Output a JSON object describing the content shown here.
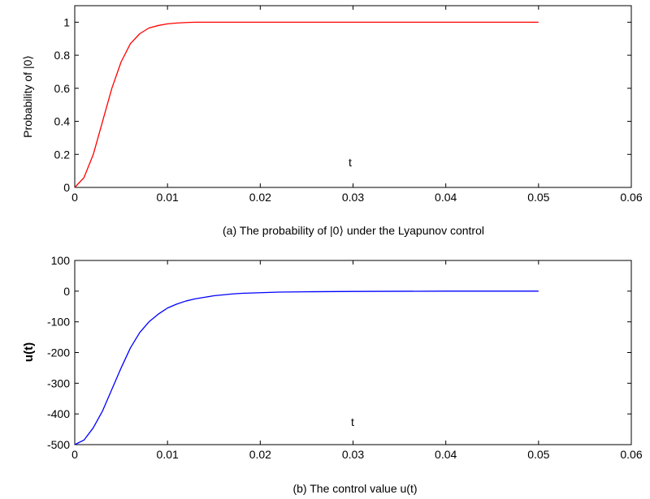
{
  "chart_data": [
    {
      "type": "line",
      "caption": "(a) The probability of |0⟩ under the Lyapunov control",
      "xlabel": "t",
      "ylabel": "Probability of |0⟩",
      "xlim": [
        0,
        0.06
      ],
      "ylim": [
        0,
        1.1
      ],
      "xticks": [
        "0",
        "0.01",
        "0.02",
        "0.03",
        "0.04",
        "0.05",
        "0.06"
      ],
      "yticks": [
        "0",
        "0.2",
        "0.4",
        "0.6",
        "0.8",
        "1"
      ],
      "grid": false,
      "series": [
        {
          "color": "#ff0000",
          "x": [
            0,
            0.001,
            0.002,
            0.003,
            0.004,
            0.005,
            0.006,
            0.007,
            0.008,
            0.009,
            0.01,
            0.011,
            0.012,
            0.013,
            0.015,
            0.02,
            0.03,
            0.04,
            0.05
          ],
          "y": [
            0,
            0.06,
            0.2,
            0.4,
            0.6,
            0.76,
            0.87,
            0.93,
            0.965,
            0.98,
            0.99,
            0.995,
            0.998,
            1.0,
            1.0,
            1.0,
            1.0,
            1.0,
            1.0
          ]
        }
      ]
    },
    {
      "type": "line",
      "caption": "(b) The control value u(t)",
      "xlabel": "t",
      "ylabel": "u(t)",
      "xlim": [
        0,
        0.06
      ],
      "ylim": [
        -500,
        100
      ],
      "xticks": [
        "0",
        "0.01",
        "0.02",
        "0.03",
        "0.04",
        "0.05",
        "0.06"
      ],
      "yticks": [
        "-500",
        "-400",
        "-300",
        "-200",
        "-100",
        "0",
        "100"
      ],
      "grid": false,
      "series": [
        {
          "color": "#0000ff",
          "x": [
            0,
            0.001,
            0.002,
            0.003,
            0.004,
            0.005,
            0.006,
            0.007,
            0.008,
            0.009,
            0.01,
            0.011,
            0.012,
            0.013,
            0.014,
            0.015,
            0.016,
            0.017,
            0.018,
            0.02,
            0.022,
            0.025,
            0.03,
            0.04,
            0.05
          ],
          "y": [
            -500,
            -485,
            -445,
            -390,
            -320,
            -250,
            -185,
            -135,
            -100,
            -75,
            -55,
            -42,
            -32,
            -25,
            -20,
            -15,
            -12,
            -9,
            -7,
            -5,
            -3,
            -2,
            -1,
            0,
            0
          ]
        }
      ]
    }
  ]
}
